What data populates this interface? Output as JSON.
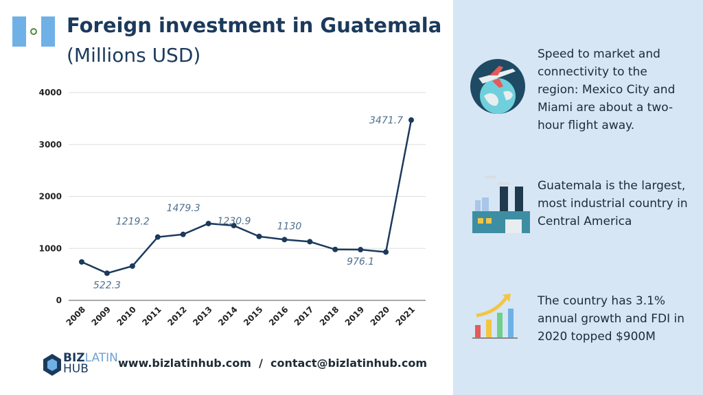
{
  "header": {
    "title": "Foreign investment in Guatemala",
    "subtitle": "(Millions USD)"
  },
  "chart_data": {
    "type": "line",
    "categories": [
      "2008",
      "2009",
      "2010",
      "2011",
      "2012",
      "2013",
      "2014",
      "2015",
      "2016",
      "2017",
      "2018",
      "2019",
      "2020",
      "2021"
    ],
    "values": [
      740,
      522.3,
      660,
      1219.2,
      1270,
      1479.3,
      1440,
      1230.9,
      1170,
      1130,
      980,
      976.1,
      930,
      3471.7
    ],
    "value_labels": [
      null,
      "522.3",
      null,
      "1219.2",
      null,
      "1479.3",
      null,
      "1230.9",
      null,
      "1130",
      null,
      "976.1",
      null,
      "3471.7"
    ],
    "color": "#1b3a5c",
    "ylim": [
      0,
      4000
    ],
    "yticks": [
      0,
      1000,
      2000,
      3000,
      4000
    ],
    "grid": true
  },
  "facts": [
    {
      "text": "Speed to market and connectivity to the region: Mexico City and Miami are about a two-hour flight away."
    },
    {
      "text": "Guatemala is the largest, most industrial country in Central America"
    },
    {
      "text": "The country has 3.1% annual growth and FDI in 2020 topped $900M"
    }
  ],
  "footer": {
    "logo_biz": "BIZ",
    "logo_latin": "LATIN",
    "logo_hub": "HUB",
    "links": "www.bizlatinhub.com  /  contact@bizlatinhub.com"
  }
}
